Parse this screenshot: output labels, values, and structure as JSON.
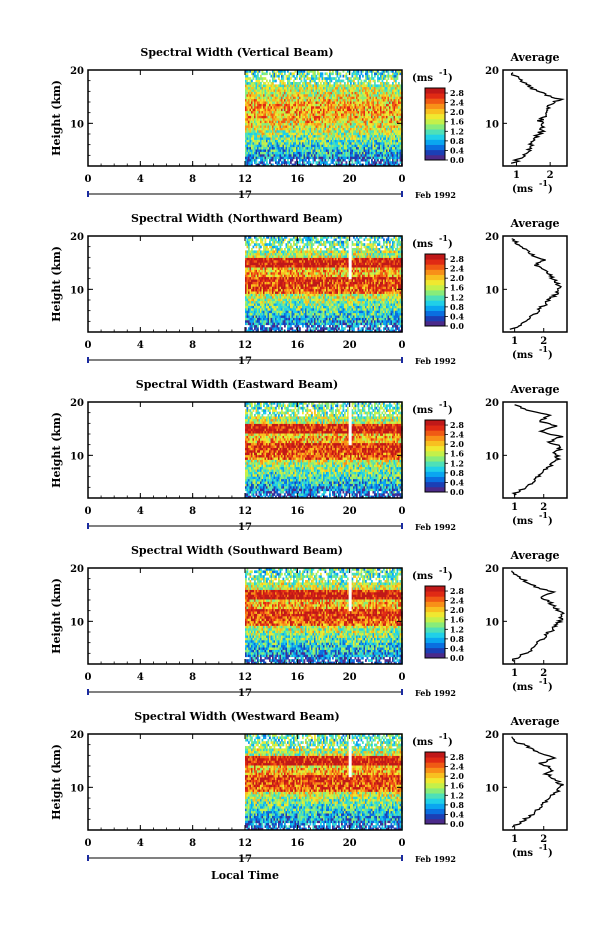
{
  "figure": {
    "date_label": "Feb 1992",
    "xlabel_bottom": "Local Time",
    "day_label": "17",
    "colorbar_unit": "(ms",
    "avg_title": "Average",
    "avg_xlabel": "(ms"
  },
  "colorbar_ticks": [
    "2.8",
    "2.4",
    "2.0",
    "1.6",
    "1.2",
    "0.8",
    "0.4",
    "0.0"
  ],
  "colorbar_colors": [
    "#4b2a8a",
    "#1b3fb5",
    "#0a6fe0",
    "#0aa6f0",
    "#20d0e8",
    "#4ee0b8",
    "#88ec7a",
    "#c4f04a",
    "#f0e830",
    "#f8c020",
    "#f89018",
    "#f05a14",
    "#e02a14",
    "#c01818"
  ],
  "chart_data": [
    {
      "type": "heatmap",
      "title": "Spectral Width (Vertical Beam)",
      "ylabel": "Height (km)",
      "xlim": [
        0,
        24
      ],
      "xticks": [
        "0",
        "4",
        "8",
        "12",
        "16",
        "20",
        "0"
      ],
      "ylim": [
        2,
        20
      ],
      "yticks": [
        "20",
        "10"
      ],
      "data_start_hour": 12,
      "colorbar_range": [
        0.0,
        2.8
      ],
      "profile_xlim": [
        0.6,
        2.5
      ],
      "profile_xticks": [
        "1",
        "2"
      ],
      "profile_yticks": [
        "20",
        "10"
      ],
      "profile_points": [
        [
          0.9,
          2.5
        ],
        [
          1.1,
          3.5
        ],
        [
          1.3,
          4.5
        ],
        [
          1.4,
          5.5
        ],
        [
          1.5,
          6.5
        ],
        [
          1.6,
          7.5
        ],
        [
          1.75,
          8.5
        ],
        [
          1.8,
          9.5
        ],
        [
          1.7,
          10.5
        ],
        [
          1.9,
          11.5
        ],
        [
          1.85,
          12.5
        ],
        [
          2.0,
          13.5
        ],
        [
          2.3,
          14.5
        ],
        [
          1.8,
          15.5
        ],
        [
          1.5,
          16.5
        ],
        [
          1.3,
          17.5
        ],
        [
          1.0,
          18.5
        ],
        [
          0.9,
          19.5
        ]
      ]
    },
    {
      "type": "heatmap",
      "title": "Spectral Width (Northward Beam)",
      "ylabel": "Height (km)",
      "xlim": [
        0,
        24
      ],
      "xticks": [
        "0",
        "4",
        "8",
        "12",
        "16",
        "20",
        "0"
      ],
      "ylim": [
        2,
        20
      ],
      "yticks": [
        "20",
        "10"
      ],
      "data_start_hour": 12,
      "colorbar_range": [
        0.0,
        2.8
      ],
      "profile_xlim": [
        0.6,
        2.8
      ],
      "profile_xticks": [
        "1",
        "2"
      ],
      "profile_yticks": [
        "20",
        "10"
      ],
      "profile_points": [
        [
          0.9,
          2.5
        ],
        [
          1.2,
          3.5
        ],
        [
          1.5,
          4.5
        ],
        [
          1.7,
          5.5
        ],
        [
          1.9,
          6.5
        ],
        [
          2.1,
          7.5
        ],
        [
          2.3,
          8.5
        ],
        [
          2.5,
          9.5
        ],
        [
          2.6,
          10.5
        ],
        [
          2.4,
          11.5
        ],
        [
          2.2,
          12.5
        ],
        [
          2.1,
          13.5
        ],
        [
          1.7,
          14.5
        ],
        [
          2.0,
          15.5
        ],
        [
          1.6,
          16.5
        ],
        [
          1.4,
          17.5
        ],
        [
          1.1,
          18.5
        ],
        [
          0.9,
          19.5
        ]
      ]
    },
    {
      "type": "heatmap",
      "title": "Spectral Width (Eastward Beam)",
      "ylabel": "Height (km)",
      "xlim": [
        0,
        24
      ],
      "xticks": [
        "0",
        "4",
        "8",
        "12",
        "16",
        "20",
        "0"
      ],
      "ylim": [
        2,
        20
      ],
      "yticks": [
        "20",
        "10"
      ],
      "data_start_hour": 12,
      "colorbar_range": [
        0.0,
        2.8
      ],
      "profile_xlim": [
        0.6,
        2.8
      ],
      "profile_xticks": [
        "1",
        "2"
      ],
      "profile_yticks": [
        "20",
        "10"
      ],
      "profile_points": [
        [
          0.9,
          2.5
        ],
        [
          1.2,
          3.5
        ],
        [
          1.5,
          4.5
        ],
        [
          1.7,
          5.5
        ],
        [
          1.9,
          6.5
        ],
        [
          2.1,
          7.5
        ],
        [
          2.3,
          8.5
        ],
        [
          2.5,
          9.5
        ],
        [
          2.4,
          10.5
        ],
        [
          2.6,
          11.5
        ],
        [
          2.2,
          12.5
        ],
        [
          2.6,
          13.5
        ],
        [
          1.9,
          14.5
        ],
        [
          2.5,
          15.5
        ],
        [
          1.8,
          16.5
        ],
        [
          2.3,
          17.5
        ],
        [
          1.4,
          18.5
        ],
        [
          1.0,
          19.5
        ]
      ]
    },
    {
      "type": "heatmap",
      "title": "Spectral Width (Southward Beam)",
      "ylabel": "Height (km)",
      "xlim": [
        0,
        24
      ],
      "xticks": [
        "0",
        "4",
        "8",
        "12",
        "16",
        "20",
        "0"
      ],
      "ylim": [
        2,
        20
      ],
      "yticks": [
        "20",
        "10"
      ],
      "data_start_hour": 12,
      "colorbar_range": [
        0.0,
        2.8
      ],
      "profile_xlim": [
        0.6,
        2.8
      ],
      "profile_xticks": [
        "1",
        "2"
      ],
      "profile_yticks": [
        "20",
        "10"
      ],
      "profile_points": [
        [
          0.9,
          2.5
        ],
        [
          1.2,
          3.5
        ],
        [
          1.5,
          4.5
        ],
        [
          1.7,
          5.5
        ],
        [
          1.9,
          6.5
        ],
        [
          2.1,
          7.5
        ],
        [
          2.3,
          8.5
        ],
        [
          2.5,
          9.5
        ],
        [
          2.6,
          10.5
        ],
        [
          2.7,
          11.5
        ],
        [
          2.4,
          12.5
        ],
        [
          2.2,
          13.5
        ],
        [
          1.9,
          14.5
        ],
        [
          2.3,
          15.5
        ],
        [
          1.7,
          16.5
        ],
        [
          1.4,
          17.5
        ],
        [
          1.1,
          18.5
        ],
        [
          0.9,
          19.5
        ]
      ]
    },
    {
      "type": "heatmap",
      "title": "Spectral Width (Westward Beam)",
      "ylabel": "Height (km)",
      "xlim": [
        0,
        24
      ],
      "xticks": [
        "0",
        "4",
        "8",
        "12",
        "16",
        "20",
        "0"
      ],
      "ylim": [
        2,
        20
      ],
      "yticks": [
        "20",
        "10"
      ],
      "data_start_hour": 12,
      "colorbar_range": [
        0.0,
        2.8
      ],
      "profile_xlim": [
        0.6,
        2.8
      ],
      "profile_xticks": [
        "1",
        "2"
      ],
      "profile_yticks": [
        "20",
        "10"
      ],
      "profile_points": [
        [
          0.9,
          2.5
        ],
        [
          1.2,
          3.5
        ],
        [
          1.5,
          4.5
        ],
        [
          1.7,
          5.5
        ],
        [
          1.9,
          6.5
        ],
        [
          2.1,
          7.5
        ],
        [
          2.3,
          8.5
        ],
        [
          2.5,
          9.5
        ],
        [
          2.6,
          10.5
        ],
        [
          2.4,
          11.5
        ],
        [
          2.1,
          12.5
        ],
        [
          2.3,
          13.5
        ],
        [
          1.9,
          14.5
        ],
        [
          2.4,
          15.5
        ],
        [
          1.9,
          16.5
        ],
        [
          1.5,
          17.5
        ],
        [
          1.1,
          18.5
        ],
        [
          0.9,
          19.5
        ]
      ]
    }
  ]
}
